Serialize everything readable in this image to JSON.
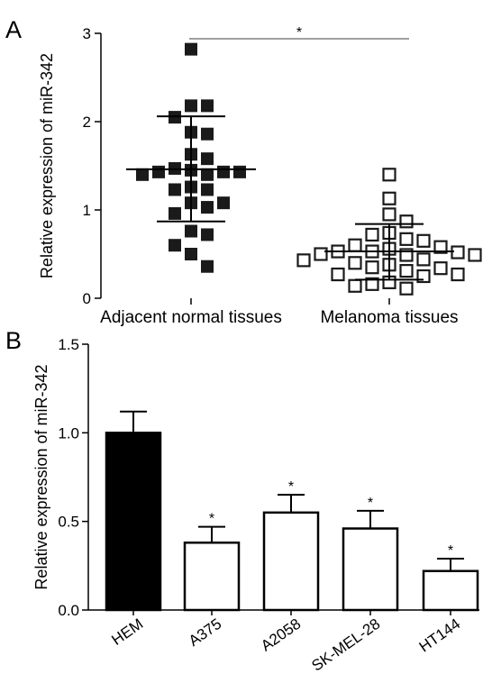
{
  "panel_labels": [
    "A",
    "B"
  ],
  "chart_data": [
    {
      "type": "scatter",
      "panel": "A",
      "title": "",
      "ylabel": "Relative expression of miR-342",
      "ylim": [
        0,
        3
      ],
      "yticks": [
        0,
        1,
        2,
        3
      ],
      "categories": [
        "Adjacent normal tissues",
        "Melanoma tissues"
      ],
      "series": [
        {
          "category": "Adjacent normal tissues",
          "marker": "filled-square",
          "values": [
            2.82,
            2.18,
            2.18,
            2.05,
            1.88,
            1.86,
            1.63,
            1.58,
            1.47,
            1.45,
            1.43,
            1.43,
            1.43,
            1.4,
            1.4,
            1.26,
            1.23,
            1.23,
            1.08,
            1.08,
            1.03,
            0.96,
            0.76,
            0.72,
            0.6,
            0.5,
            0.36
          ],
          "mean": 1.46,
          "sd_upper": 2.06,
          "sd_lower": 0.87
        },
        {
          "category": "Melanoma tissues",
          "marker": "open-square",
          "values": [
            1.4,
            1.13,
            0.95,
            0.87,
            0.74,
            0.72,
            0.67,
            0.65,
            0.6,
            0.58,
            0.56,
            0.53,
            0.53,
            0.52,
            0.5,
            0.49,
            0.49,
            0.44,
            0.43,
            0.4,
            0.38,
            0.35,
            0.34,
            0.31,
            0.27,
            0.27,
            0.25,
            0.18,
            0.16,
            0.14,
            0.11
          ],
          "mean": 0.53,
          "sd_upper": 0.84,
          "sd_lower": 0.21
        }
      ],
      "significance": "*",
      "colors": {
        "filled": "#1a1a1a",
        "open": "#ffffff"
      }
    },
    {
      "type": "bar",
      "panel": "B",
      "title": "",
      "ylabel": "Relative expression of  miR-342",
      "ylim": [
        0,
        1.5
      ],
      "yticks": [
        "0.0",
        "0.5",
        "1.0",
        "1.5"
      ],
      "categories": [
        "HEM",
        "A375",
        "A2058",
        "SK-MEL-28",
        "HT144"
      ],
      "values": [
        1.0,
        0.38,
        0.55,
        0.46,
        0.22
      ],
      "errors": [
        0.12,
        0.09,
        0.1,
        0.1,
        0.07
      ],
      "significance": [
        "",
        "*",
        "*",
        "*",
        "*"
      ],
      "colors": [
        "#000000",
        "#ffffff",
        "#ffffff",
        "#ffffff",
        "#ffffff"
      ]
    }
  ]
}
